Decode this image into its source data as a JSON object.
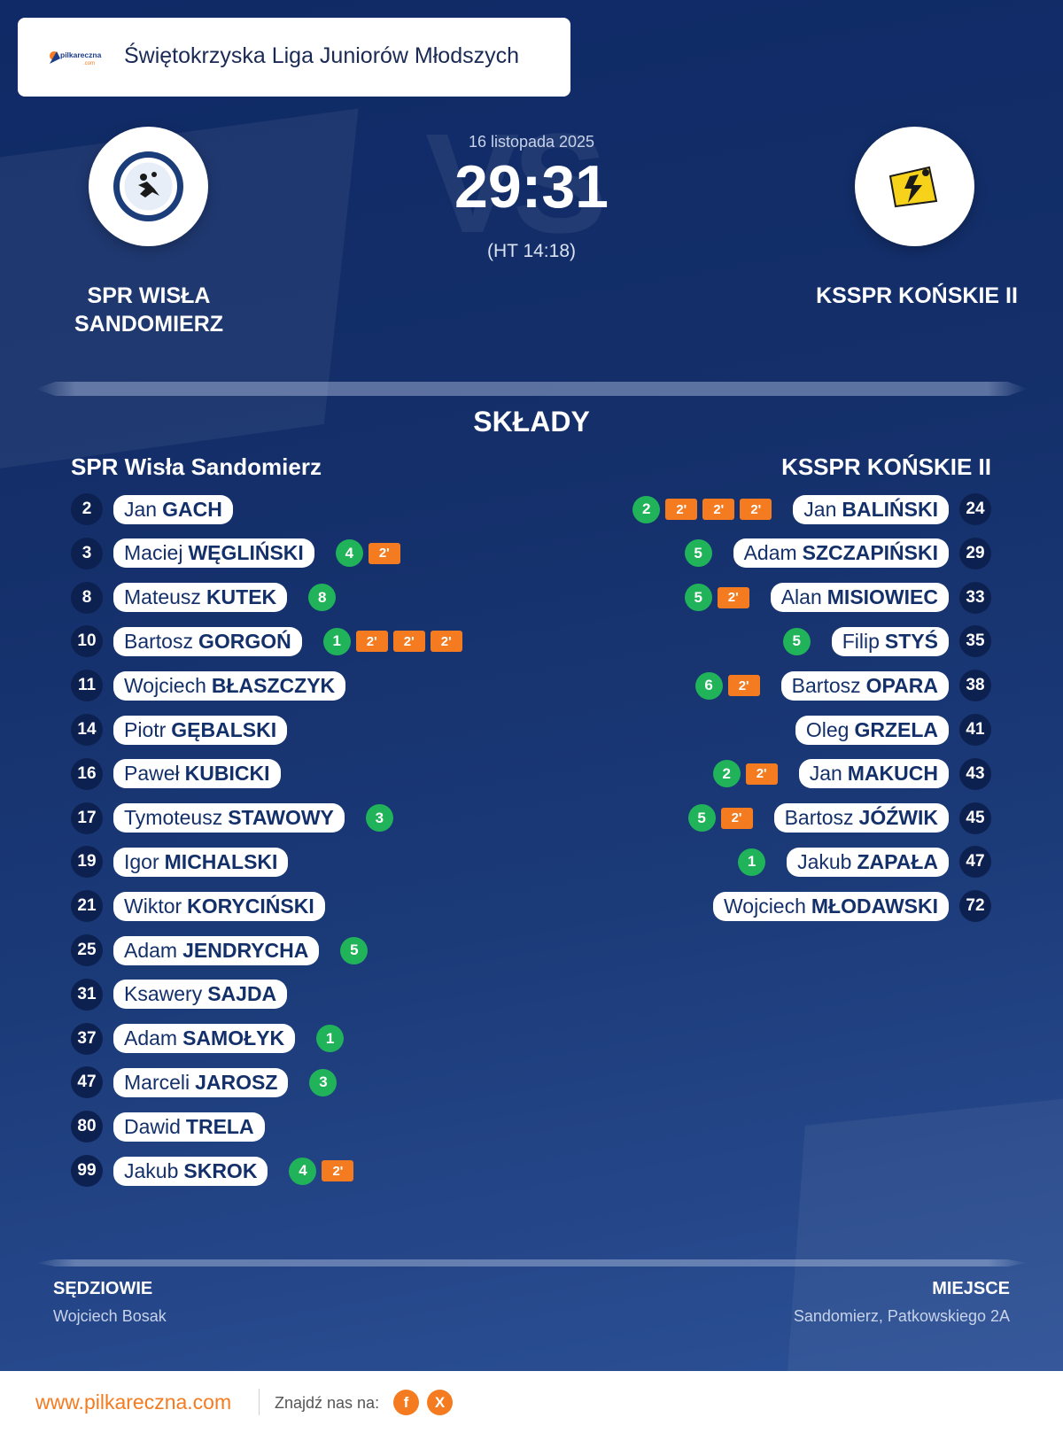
{
  "header": {
    "brand_logo_text": "pilkareczna",
    "brand_logo_sub": ".com",
    "league": "Świętokrzyska Liga Juniorów Młodszych"
  },
  "match": {
    "date": "16 listopada 2025",
    "score": "29:31",
    "halftime": "(HT 14:18)",
    "vs_watermark": "VS",
    "home_team_line1": "SPR WISŁA",
    "home_team_line2": "SANDOMIERZ",
    "away_team": "KSSPR KOŃSKIE II"
  },
  "lineups": {
    "title": "SKŁADY",
    "home_title": "SPR Wisła Sandomierz",
    "away_title": "KSSPR KOŃSKIE II",
    "home": [
      {
        "number": "2",
        "first": "Jan",
        "last": "GACH",
        "goals": null,
        "penalties": []
      },
      {
        "number": "3",
        "first": "Maciej",
        "last": "WĘGLIŃSKI",
        "goals": "4",
        "penalties": [
          "2'"
        ]
      },
      {
        "number": "8",
        "first": "Mateusz",
        "last": "KUTEK",
        "goals": "8",
        "penalties": []
      },
      {
        "number": "10",
        "first": "Bartosz",
        "last": "GORGOŃ",
        "goals": "1",
        "penalties": [
          "2'",
          "2'",
          "2'"
        ]
      },
      {
        "number": "11",
        "first": "Wojciech",
        "last": "BŁASZCZYK",
        "goals": null,
        "penalties": []
      },
      {
        "number": "14",
        "first": "Piotr",
        "last": "GĘBALSKI",
        "goals": null,
        "penalties": []
      },
      {
        "number": "16",
        "first": "Paweł",
        "last": "KUBICKI",
        "goals": null,
        "penalties": []
      },
      {
        "number": "17",
        "first": "Tymoteusz",
        "last": "STAWOWY",
        "goals": "3",
        "penalties": []
      },
      {
        "number": "19",
        "first": "Igor",
        "last": "MICHALSKI",
        "goals": null,
        "penalties": []
      },
      {
        "number": "21",
        "first": "Wiktor",
        "last": "KORYCIŃSKI",
        "goals": null,
        "penalties": []
      },
      {
        "number": "25",
        "first": "Adam",
        "last": "JENDRYCHA",
        "goals": "5",
        "penalties": []
      },
      {
        "number": "31",
        "first": "Ksawery",
        "last": "SAJDA",
        "goals": null,
        "penalties": []
      },
      {
        "number": "37",
        "first": "Adam",
        "last": "SAMOŁYK",
        "goals": "1",
        "penalties": []
      },
      {
        "number": "47",
        "first": "Marceli",
        "last": "JAROSZ",
        "goals": "3",
        "penalties": []
      },
      {
        "number": "80",
        "first": "Dawid",
        "last": "TRELA",
        "goals": null,
        "penalties": []
      },
      {
        "number": "99",
        "first": "Jakub",
        "last": "SKROK",
        "goals": "4",
        "penalties": [
          "2'"
        ]
      }
    ],
    "away": [
      {
        "number": "24",
        "first": "Jan",
        "last": "BALIŃSKI",
        "goals": "2",
        "penalties": [
          "2'",
          "2'",
          "2'"
        ]
      },
      {
        "number": "29",
        "first": "Adam",
        "last": "SZCZAPIŃSKI",
        "goals": "5",
        "penalties": []
      },
      {
        "number": "33",
        "first": "Alan",
        "last": "MISIOWIEC",
        "goals": "5",
        "penalties": [
          "2'"
        ]
      },
      {
        "number": "35",
        "first": "Filip",
        "last": "STYŚ",
        "goals": "5",
        "penalties": []
      },
      {
        "number": "38",
        "first": "Bartosz",
        "last": "OPARA",
        "goals": "6",
        "penalties": [
          "2'"
        ]
      },
      {
        "number": "41",
        "first": "Oleg",
        "last": "GRZELA",
        "goals": null,
        "penalties": []
      },
      {
        "number": "43",
        "first": "Jan",
        "last": "MAKUCH",
        "goals": "2",
        "penalties": [
          "2'"
        ]
      },
      {
        "number": "45",
        "first": "Bartosz",
        "last": "JÓŹWIK",
        "goals": "5",
        "penalties": [
          "2'"
        ]
      },
      {
        "number": "47",
        "first": "Jakub",
        "last": "ZAPAŁA",
        "goals": "1",
        "penalties": []
      },
      {
        "number": "72",
        "first": "Wojciech",
        "last": "MŁODAWSKI",
        "goals": null,
        "penalties": []
      }
    ]
  },
  "officials": {
    "referees_label": "SĘDZIOWIE",
    "referees_value": "Wojciech Bosak",
    "venue_label": "MIEJSCE",
    "venue_value": "Sandomierz, Patkowskiego 2A"
  },
  "footer": {
    "url": "www.pilkareczna.com",
    "find_us": "Znajdź nas na:",
    "facebook_glyph": "f",
    "x_glyph": "X"
  },
  "colors": {
    "background": "#142f6a",
    "goal_badge": "#21b35a",
    "penalty_badge": "#f47b20",
    "number_circle": "#0d2150",
    "brand_orange": "#f47b20"
  },
  "icons": [
    "brand-logo",
    "home-team-logo",
    "away-team-logo",
    "facebook-icon",
    "x-icon"
  ]
}
